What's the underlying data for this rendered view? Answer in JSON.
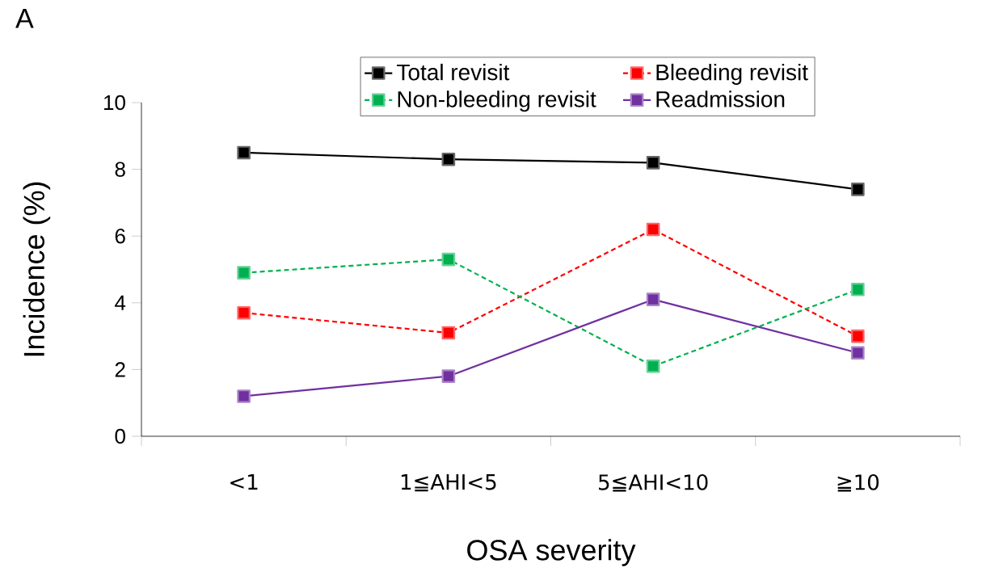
{
  "chart_data": {
    "type": "line",
    "xlabel": "OSA severity",
    "ylabel": "Incidence (%)",
    "annotations": [
      "A"
    ],
    "categories": [
      "<1",
      "1≦AHI<5",
      "5≦AHI<10",
      "≧10"
    ],
    "series": [
      {
        "name": "Total revisit",
        "color": "#000000",
        "line_style": "solid",
        "values": [
          8.5,
          8.3,
          8.2,
          7.4
        ]
      },
      {
        "name": "Bleeding revisit",
        "color": "#ff0000",
        "line_style": "dashed",
        "values": [
          3.7,
          3.1,
          6.2,
          3.0
        ]
      },
      {
        "name": "Non-bleeding revisit",
        "color": "#00b050",
        "line_style": "dashed",
        "values": [
          4.9,
          5.3,
          2.1,
          4.4
        ]
      },
      {
        "name": "Readmission",
        "color": "#7030a0",
        "line_style": "solid",
        "values": [
          1.2,
          1.8,
          4.1,
          2.5
        ]
      }
    ],
    "ylim": [
      0,
      10
    ],
    "yticks": [
      0,
      2,
      4,
      6,
      8,
      10
    ],
    "grid": false,
    "legend": "top",
    "marker": "square"
  }
}
